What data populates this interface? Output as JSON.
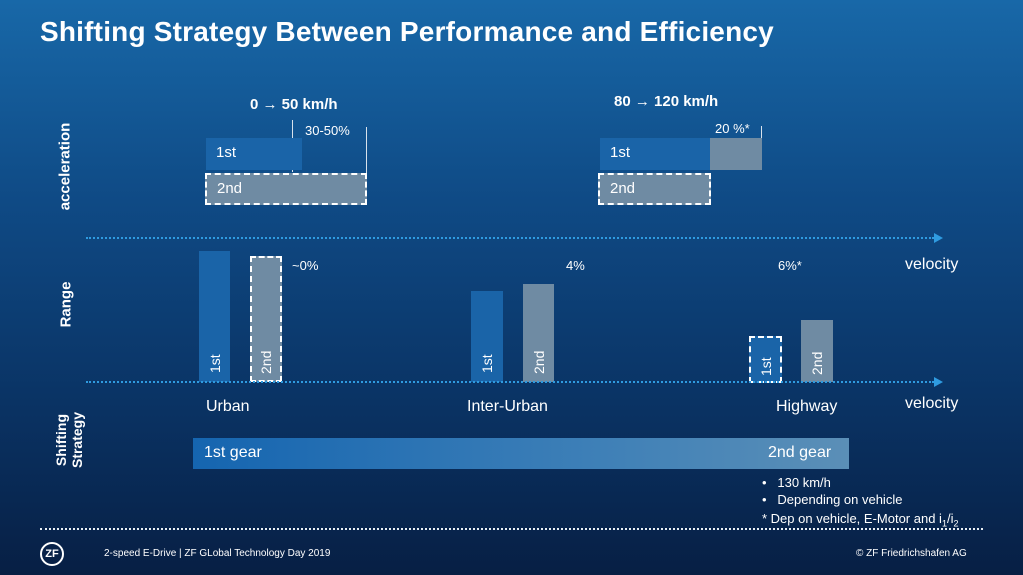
{
  "title": "Shifting Strategy Between Performance and Efficiency",
  "rows": {
    "acceleration": "acceleration",
    "range": "Range",
    "shifting": "Shifting Strategy"
  },
  "acceleration": {
    "left": {
      "heading": "0 → 50 km/h",
      "pct": "30-50%",
      "first": "1st",
      "second": "2nd"
    },
    "right": {
      "heading": "80 → 120 km/h",
      "pct": "20 %*",
      "first": "1st",
      "second": "2nd"
    }
  },
  "range": {
    "velocity_label": "velocity",
    "groups": [
      {
        "name": "Urban",
        "pct": "~0%",
        "first": "1st",
        "second": "2nd"
      },
      {
        "name": "Inter-Urban",
        "pct": "4%",
        "first": "1st",
        "second": "2nd"
      },
      {
        "name": "Highway",
        "pct": "6%*",
        "first": "1st",
        "second": "2nd"
      }
    ]
  },
  "shifting": {
    "velocity_label": "velocity",
    "first_gear": "1st gear",
    "second_gear": "2nd gear",
    "bullets": [
      "130 km/h",
      "Depending on vehicle"
    ],
    "note_prefix": "* Dep on vehicle, E-Motor and i",
    "note_sub1": "1",
    "note_slash": "/i",
    "note_sub2": "2",
    "bullet_glyph": "•"
  },
  "footer": {
    "logo": "ZF",
    "left_text": "2-speed E-Drive | ZF GLobal Technology Day 2019",
    "right_text": "© ZF Friedrichshafen AG"
  },
  "colors": {
    "axis": "#2f9be0",
    "bar_dark": "#1a64a8",
    "bar_grey": "#6f8ba3"
  }
}
